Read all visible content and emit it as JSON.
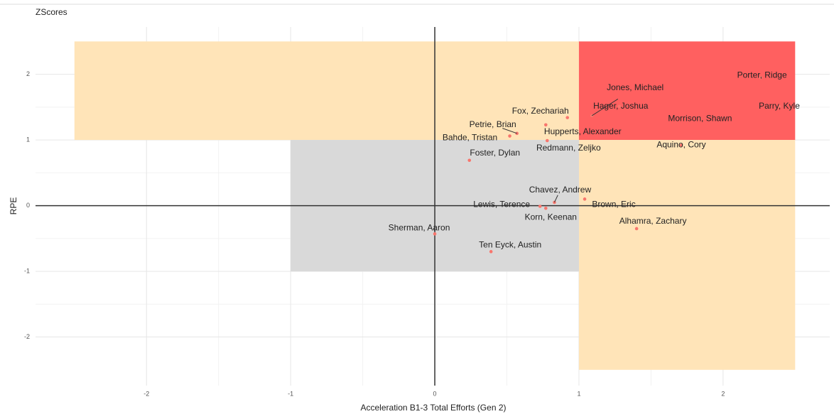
{
  "chart_data": {
    "type": "scatter",
    "title": "ZScores",
    "x_label": "Acceleration B1-3 Total Efforts (Gen 2)",
    "y_label": "RPE",
    "labels": [
      "Porter, Ridge",
      "Jones, Michael",
      "Parry, Kyle",
      "Hager, Joshua",
      "Morrison, Shawn",
      "Fox, Zechariah",
      "Petrie, Brian",
      "Hupperts, Alexander",
      "Bahde, Tristan",
      "Redmann, Zeljko",
      "Aquino, Cory",
      "Foster, Dylan",
      "Chavez, Andrew",
      "Lewis, Terence",
      "Korn, Keenan",
      "Brown, Eric",
      "Alhamra, Zachary",
      "Sherman, Aaron",
      "Ten Eyck, Austin"
    ],
    "x": [
      2.26,
      1.09,
      2.39,
      1.28,
      1.84,
      0.92,
      0.57,
      0.77,
      0.52,
      0.78,
      1.71,
      0.24,
      0.83,
      0.73,
      0.77,
      1.04,
      1.4,
      0.0,
      0.39
    ],
    "y": [
      1.95,
      1.37,
      1.51,
      1.51,
      1.32,
      1.34,
      1.1,
      1.23,
      1.06,
      0.99,
      0.92,
      0.69,
      0.05,
      -0.01,
      -0.04,
      0.1,
      -0.35,
      -0.43,
      -0.7
    ],
    "color": "#f8766d",
    "regions": [
      {
        "x": [
          -2.5,
          1
        ],
        "y": [
          1,
          2.5
        ],
        "color": "#ffe4b8"
      },
      {
        "x": [
          1,
          2.5
        ],
        "y": [
          1,
          2.5
        ],
        "color": "#ff6060"
      },
      {
        "x": [
          1,
          2.5
        ],
        "y": [
          -2.5,
          1
        ],
        "color": "#ffe4b8"
      },
      {
        "x": [
          -1,
          1
        ],
        "y": [
          -1,
          1
        ],
        "color": "#d9d9d9"
      }
    ],
    "xlim": [
      -2.77,
      2.74
    ],
    "ylim": [
      -2.74,
      2.72
    ],
    "xticks": [
      -2,
      -1,
      0,
      1,
      2
    ],
    "yticks": [
      -2,
      -1,
      0,
      1,
      2
    ],
    "grid": true
  }
}
